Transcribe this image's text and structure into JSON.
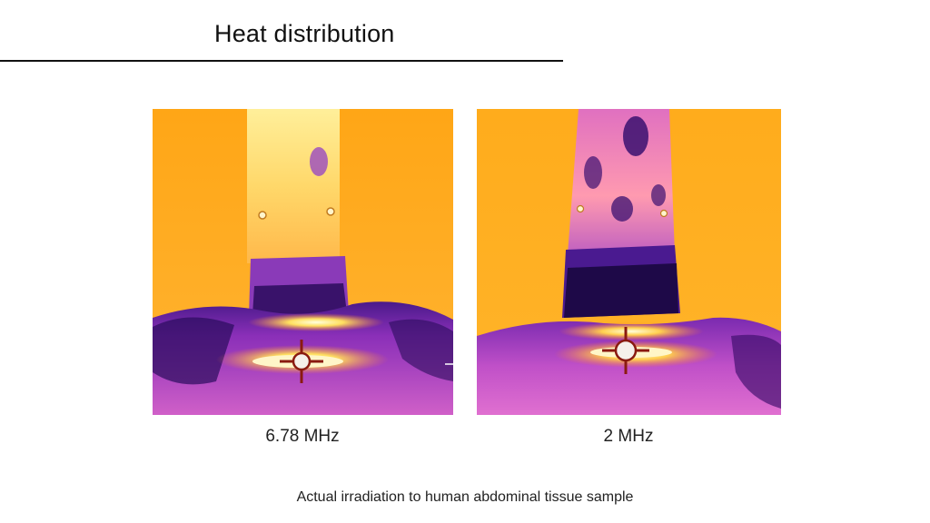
{
  "slide": {
    "title": "Heat distribution",
    "caption": "Actual irradiation to human abdominal tissue sample"
  },
  "images": [
    {
      "frequency_label": "6.78 MHz"
    },
    {
      "frequency_label": "2 MHz"
    }
  ],
  "colors": {
    "background_hot": "#ffac1c",
    "probe_left": "#ffe9a0",
    "tissue_purple": "#8a2fb8",
    "tissue_dark": "#2a0c5c",
    "hotspot": "#fff6c8",
    "crosshair": "#8a1a10"
  }
}
